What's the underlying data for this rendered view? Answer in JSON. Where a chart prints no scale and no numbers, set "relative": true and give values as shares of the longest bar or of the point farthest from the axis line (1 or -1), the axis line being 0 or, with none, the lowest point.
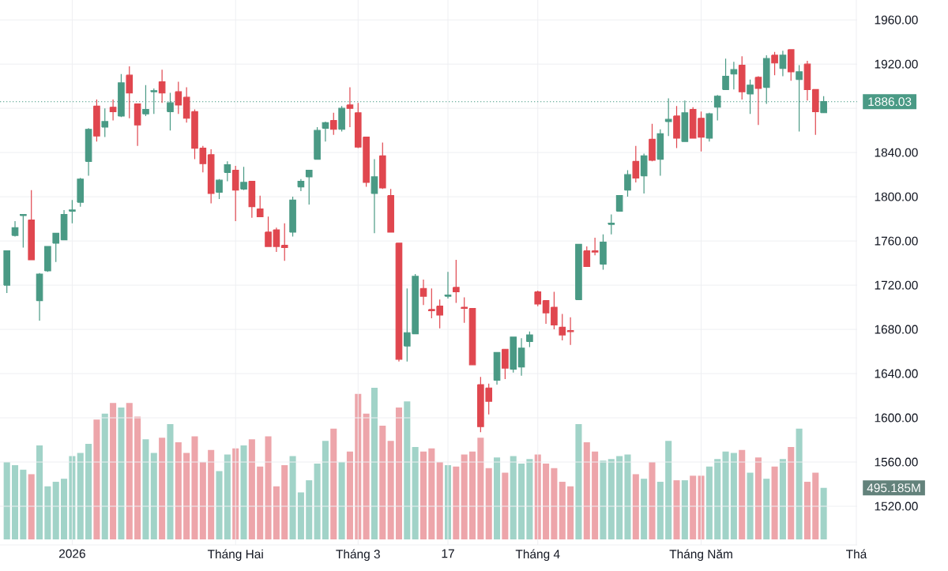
{
  "chart_data": [
    {
      "type": "candlestick",
      "categories": [
        null,
        null,
        null,
        null,
        null,
        null,
        null,
        null,
        "2026",
        null,
        null,
        null,
        null,
        null,
        null,
        null,
        null,
        null,
        null,
        null,
        null,
        null,
        null,
        null,
        null,
        null,
        null,
        null,
        "Tháng Hai",
        null,
        null,
        null,
        null,
        null,
        null,
        null,
        null,
        null,
        null,
        null,
        null,
        null,
        null,
        "Tháng 3",
        null,
        null,
        null,
        null,
        null,
        null,
        null,
        null,
        null,
        null,
        "17",
        null,
        null,
        null,
        null,
        null,
        null,
        null,
        null,
        null,
        null,
        "Tháng 4",
        null,
        null,
        null,
        null,
        null,
        null,
        null,
        null,
        null,
        null,
        null,
        null,
        null,
        null,
        null,
        null,
        null,
        null,
        null,
        "Tháng Năm",
        null,
        null,
        null,
        null,
        null,
        null,
        null,
        null,
        null,
        null,
        null,
        null,
        null,
        null,
        null,
        null,
        null,
        null,
        "Thá"
      ],
      "ohlc": [
        [
          1720,
          1751,
          1713,
          1751
        ],
        [
          1765,
          1778,
          1764,
          1772
        ],
        [
          1783,
          1784,
          1754,
          1784
        ],
        [
          1779,
          1806,
          1743,
          1743
        ],
        [
          1706,
          1731,
          1688,
          1730
        ],
        [
          1733,
          1755,
          1732,
          1755
        ],
        [
          1758,
          1767,
          1741,
          1767
        ],
        [
          1761,
          1788,
          1761,
          1784
        ],
        [
          1787,
          1797,
          1776,
          1788
        ],
        [
          1795,
          1817,
          1791,
          1816
        ],
        [
          1832,
          1862,
          1819,
          1861
        ],
        [
          1882,
          1888,
          1850,
          1855
        ],
        [
          1863,
          1880,
          1854,
          1868
        ],
        [
          1881,
          1888,
          1869,
          1877
        ],
        [
          1873,
          1911,
          1872,
          1903
        ],
        [
          1910,
          1918,
          1871,
          1894
        ],
        [
          1884,
          1884,
          1846,
          1865
        ],
        [
          1875,
          1901,
          1873,
          1879
        ],
        [
          1895,
          1898,
          1875,
          1896
        ],
        [
          1904,
          1915,
          1885,
          1894
        ],
        [
          1877,
          1894,
          1860,
          1885
        ],
        [
          1895,
          1904,
          1875,
          1883
        ],
        [
          1890,
          1899,
          1867,
          1871
        ],
        [
          1877,
          1879,
          1834,
          1844
        ],
        [
          1844,
          1846,
          1822,
          1830
        ],
        [
          1838,
          1843,
          1794,
          1803
        ],
        [
          1804,
          1816,
          1798,
          1815
        ],
        [
          1822,
          1832,
          1814,
          1829
        ],
        [
          1824,
          1828,
          1778,
          1806
        ],
        [
          1807,
          1827,
          1806,
          1813
        ],
        [
          1814,
          1814,
          1781,
          1791
        ],
        [
          1789,
          1801,
          1782,
          1782
        ],
        [
          1768,
          1782,
          1755,
          1755
        ],
        [
          1770,
          1772,
          1750,
          1755
        ],
        [
          1756,
          1776,
          1742,
          1754
        ],
        [
          1768,
          1800,
          1764,
          1797
        ],
        [
          1809,
          1816,
          1805,
          1814
        ],
        [
          1818,
          1824,
          1793,
          1824
        ],
        [
          1834,
          1863,
          1834,
          1860
        ],
        [
          1862,
          1868,
          1850,
          1867
        ],
        [
          1869,
          1876,
          1856,
          1861
        ],
        [
          1861,
          1882,
          1859,
          1880
        ],
        [
          1883,
          1899,
          1863,
          1880
        ],
        [
          1876,
          1885,
          1844,
          1845
        ],
        [
          1854,
          1854,
          1809,
          1813
        ],
        [
          1803,
          1834,
          1767,
          1818
        ],
        [
          1837,
          1849,
          1807,
          1808
        ],
        [
          1801,
          1807,
          1768,
          1768
        ],
        [
          1758,
          1758,
          1651,
          1653
        ],
        [
          1665,
          1717,
          1651,
          1677
        ],
        [
          1676,
          1730,
          1676,
          1728
        ],
        [
          1717,
          1725,
          1702,
          1710
        ],
        [
          1698,
          1717,
          1690,
          1697
        ],
        [
          1701,
          1707,
          1681,
          1693
        ],
        [
          1710,
          1732,
          1708,
          1711
        ],
        [
          1718,
          1743,
          1704,
          1714
        ],
        [
          1700,
          1709,
          1686,
          1699
        ],
        [
          1699,
          1699,
          1648,
          1648
        ],
        [
          1630,
          1637,
          1587,
          1592
        ],
        [
          1627,
          1631,
          1603,
          1615
        ],
        [
          1634,
          1659,
          1630,
          1659
        ],
        [
          1662,
          1662,
          1635,
          1645
        ],
        [
          1644,
          1673,
          1641,
          1673
        ],
        [
          1646,
          1672,
          1638,
          1663
        ],
        [
          1669,
          1678,
          1664,
          1675
        ],
        [
          1714,
          1715,
          1701,
          1703
        ],
        [
          1706,
          1706,
          1685,
          1695
        ],
        [
          1700,
          1714,
          1680,
          1684
        ],
        [
          1682,
          1694,
          1670,
          1675
        ],
        [
          1679,
          1691,
          1666,
          1678
        ],
        [
          1707,
          1757,
          1707,
          1757
        ],
        [
          1751,
          1755,
          1737,
          1737
        ],
        [
          1751,
          1763,
          1747,
          1750
        ],
        [
          1739,
          1766,
          1734,
          1759
        ],
        [
          1775,
          1784,
          1766,
          1776
        ],
        [
          1787,
          1801,
          1787,
          1801
        ],
        [
          1806,
          1824,
          1800,
          1820
        ],
        [
          1832,
          1846,
          1813,
          1817
        ],
        [
          1819,
          1839,
          1803,
          1837
        ],
        [
          1852,
          1866,
          1832,
          1833
        ],
        [
          1834,
          1861,
          1819,
          1857
        ],
        [
          1868,
          1889,
          1855,
          1870
        ],
        [
          1873,
          1882,
          1844,
          1853
        ],
        [
          1850,
          1887,
          1850,
          1876
        ],
        [
          1879,
          1881,
          1853,
          1853
        ],
        [
          1871,
          1877,
          1841,
          1854
        ],
        [
          1853,
          1876,
          1850,
          1875
        ],
        [
          1881,
          1892,
          1869,
          1891
        ],
        [
          1897,
          1925,
          1897,
          1909
        ],
        [
          1911,
          1922,
          1897,
          1915
        ],
        [
          1919,
          1927,
          1888,
          1895
        ],
        [
          1893,
          1906,
          1875,
          1901
        ],
        [
          1908,
          1909,
          1865,
          1898
        ],
        [
          1899,
          1928,
          1884,
          1925
        ],
        [
          1928,
          1931,
          1910,
          1921
        ],
        [
          1916,
          1932,
          1909,
          1928
        ],
        [
          1933,
          1933,
          1905,
          1913
        ],
        [
          1906,
          1919,
          1859,
          1913
        ],
        [
          1920,
          1923,
          1887,
          1897
        ],
        [
          1897,
          1897,
          1856,
          1877
        ],
        [
          1876,
          1891,
          1876,
          1886.03
        ],
        null,
        null,
        null,
        null
      ],
      "colors": [
        "#4a9a85",
        "#4a9a85",
        "#4a9a85",
        "#e0474f",
        "#4a9a85",
        "#4a9a85",
        "#4a9a85",
        "#4a9a85",
        "#4a9a85",
        "#4a9a85",
        "#4a9a85",
        "#e0474f",
        "#4a9a85",
        "#e0474f",
        "#4a9a85",
        "#e0474f",
        "#e0474f",
        "#4a9a85",
        "#4a9a85",
        "#e0474f",
        "#4a9a85",
        "#e0474f",
        "#e0474f",
        "#e0474f",
        "#e0474f",
        "#e0474f",
        "#4a9a85",
        "#4a9a85",
        "#e0474f",
        "#4a9a85",
        "#e0474f",
        "#e0474f",
        "#e0474f",
        "#e0474f",
        "#e0474f",
        "#4a9a85",
        "#4a9a85",
        "#4a9a85",
        "#4a9a85",
        "#4a9a85",
        "#e0474f",
        "#4a9a85",
        "#e0474f",
        "#e0474f",
        "#e0474f",
        "#4a9a85",
        "#e0474f",
        "#e0474f",
        "#e0474f",
        "#4a9a85",
        "#4a9a85",
        "#e0474f",
        "#e0474f",
        "#e0474f",
        "#4a9a85",
        "#e0474f",
        "#e0474f",
        "#e0474f",
        "#e0474f",
        "#e0474f",
        "#4a9a85",
        "#e0474f",
        "#4a9a85",
        "#4a9a85",
        "#4a9a85",
        "#e0474f",
        "#e0474f",
        "#e0474f",
        "#e0474f",
        "#e0474f",
        "#4a9a85",
        "#e0474f",
        "#e0474f",
        "#4a9a85",
        "#4a9a85",
        "#4a9a85",
        "#4a9a85",
        "#e0474f",
        "#4a9a85",
        "#e0474f",
        "#4a9a85",
        "#4a9a85",
        "#e0474f",
        "#4a9a85",
        "#e0474f",
        "#e0474f",
        "#4a9a85",
        "#4a9a85",
        "#4a9a85",
        "#4a9a85",
        "#e0474f",
        "#4a9a85",
        "#e0474f",
        "#4a9a85",
        "#e0474f",
        "#4a9a85",
        "#e0474f",
        "#4a9a85",
        "#e0474f",
        "#e0474f",
        "#4a9a85",
        null,
        null,
        null,
        null
      ],
      "ylim": [
        1485,
        1978
      ],
      "yticks": [
        {
          "value": 1520,
          "label": "1520.00"
        },
        {
          "value": 1560,
          "label": "1560.00"
        },
        {
          "value": 1600,
          "label": "1600.00"
        },
        {
          "value": 1640,
          "label": "1640.00"
        },
        {
          "value": 1680,
          "label": "1680.00"
        },
        {
          "value": 1720,
          "label": "1720.00"
        },
        {
          "value": 1760,
          "label": "1760.00"
        },
        {
          "value": 1800,
          "label": "1800.00"
        },
        {
          "value": 1840,
          "label": "1840.00"
        },
        {
          "value": 1880,
          "label": null
        },
        {
          "value": 1920,
          "label": "1920.00"
        },
        {
          "value": 1960,
          "label": "1960.00"
        }
      ],
      "grid": true,
      "ref_lines": [
        {
          "axis": "y",
          "value": 1886.03,
          "label": "1886.03",
          "color": "#4a9a85",
          "line_style": "dotted"
        }
      ]
    },
    {
      "type": "bar",
      "categories": [
        null,
        null,
        null,
        null,
        null,
        null,
        null,
        null,
        null,
        null,
        null,
        null,
        null,
        null,
        null,
        null,
        null,
        null,
        null,
        null,
        null,
        null,
        null,
        null,
        null,
        null,
        null,
        null,
        null,
        null,
        null,
        null,
        null,
        null,
        null,
        null,
        null,
        null,
        null,
        null,
        null,
        null,
        null,
        null,
        null,
        null,
        null,
        null,
        null,
        null,
        null,
        null,
        null,
        null,
        null,
        null,
        null,
        null,
        null,
        null,
        null,
        null,
        null,
        null,
        null,
        null,
        null,
        null,
        null,
        null,
        null,
        null,
        null,
        null,
        null,
        null,
        null,
        null,
        null,
        null,
        null,
        null,
        null,
        null,
        null,
        null,
        null,
        null,
        null,
        null,
        null,
        null,
        null,
        null,
        null,
        null,
        null,
        null,
        null,
        null,
        null,
        null,
        null,
        null,
        null
      ],
      "relative": true,
      "values": [
        0.51,
        0.49,
        0.46,
        0.43,
        0.62,
        0.35,
        0.38,
        0.4,
        0.55,
        0.57,
        0.63,
        0.79,
        0.83,
        0.9,
        0.87,
        0.9,
        0.81,
        0.66,
        0.57,
        0.67,
        0.76,
        0.64,
        0.57,
        0.68,
        0.51,
        0.59,
        0.45,
        0.56,
        0.6,
        0.62,
        0.66,
        0.48,
        0.68,
        0.35,
        0.49,
        0.55,
        0.31,
        0.39,
        0.5,
        0.65,
        0.73,
        0.51,
        0.58,
        0.96,
        0.83,
        1,
        0.75,
        0.65,
        0.87,
        0.91,
        0.61,
        0.58,
        0.6,
        0.51,
        0.49,
        0.48,
        0.56,
        0.58,
        0.67,
        0.47,
        0.54,
        0.44,
        0.55,
        0.5,
        0.53,
        0.56,
        0.5,
        0.47,
        0.38,
        0.35,
        0.76,
        0.64,
        0.58,
        0.52,
        0.53,
        0.55,
        0.56,
        0.43,
        0.4,
        0.51,
        0.38,
        0.65,
        0.39,
        0.39,
        0.42,
        0.42,
        0.48,
        0.53,
        0.58,
        0.57,
        0.59,
        0.44,
        0.54,
        0.4,
        0.48,
        0.53,
        0.61,
        0.73,
        0.38,
        0.44,
        0.34,
        null,
        null,
        null,
        null
      ],
      "colors": [
        "#a1d3c8",
        "#a1d3c8",
        "#a1d3c8",
        "#eda5aa",
        "#a1d3c8",
        "#a1d3c8",
        "#a1d3c8",
        "#a1d3c8",
        "#a1d3c8",
        "#a1d3c8",
        "#a1d3c8",
        "#eda5aa",
        "#a1d3c8",
        "#eda5aa",
        "#a1d3c8",
        "#eda5aa",
        "#eda5aa",
        "#a1d3c8",
        "#a1d3c8",
        "#eda5aa",
        "#a1d3c8",
        "#eda5aa",
        "#eda5aa",
        "#eda5aa",
        "#eda5aa",
        "#eda5aa",
        "#a1d3c8",
        "#a1d3c8",
        "#eda5aa",
        "#a1d3c8",
        "#eda5aa",
        "#eda5aa",
        "#eda5aa",
        "#eda5aa",
        "#eda5aa",
        "#a1d3c8",
        "#a1d3c8",
        "#a1d3c8",
        "#a1d3c8",
        "#a1d3c8",
        "#eda5aa",
        "#a1d3c8",
        "#eda5aa",
        "#eda5aa",
        "#eda5aa",
        "#a1d3c8",
        "#eda5aa",
        "#eda5aa",
        "#eda5aa",
        "#a1d3c8",
        "#a1d3c8",
        "#eda5aa",
        "#eda5aa",
        "#eda5aa",
        "#a1d3c8",
        "#eda5aa",
        "#eda5aa",
        "#eda5aa",
        "#eda5aa",
        "#eda5aa",
        "#a1d3c8",
        "#eda5aa",
        "#a1d3c8",
        "#a1d3c8",
        "#a1d3c8",
        "#eda5aa",
        "#eda5aa",
        "#eda5aa",
        "#eda5aa",
        "#eda5aa",
        "#a1d3c8",
        "#eda5aa",
        "#eda5aa",
        "#a1d3c8",
        "#a1d3c8",
        "#a1d3c8",
        "#a1d3c8",
        "#eda5aa",
        "#a1d3c8",
        "#eda5aa",
        "#a1d3c8",
        "#a1d3c8",
        "#eda5aa",
        "#a1d3c8",
        "#eda5aa",
        "#eda5aa",
        "#a1d3c8",
        "#a1d3c8",
        "#a1d3c8",
        "#a1d3c8",
        "#eda5aa",
        "#a1d3c8",
        "#eda5aa",
        "#a1d3c8",
        "#eda5aa",
        "#a1d3c8",
        "#eda5aa",
        "#a1d3c8",
        "#eda5aa",
        "#eda5aa",
        "#a1d3c8",
        null,
        null,
        null,
        null
      ],
      "annotations": [
        "495.185M"
      ]
    }
  ]
}
